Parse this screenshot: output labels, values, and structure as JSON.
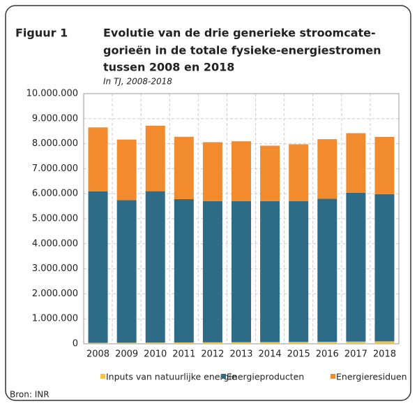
{
  "chart_data": {
    "type": "stacked_bar",
    "figure_label": "Figuur 1",
    "title": [
      "Evolutie van de drie generieke stroomcate-",
      "gorieën in de totale fysieke-energiestromen",
      "tussen 2008 en 2018"
    ],
    "subtitle": "In TJ, 2008-2018",
    "source": "Bron: INR",
    "categories": [
      "2008",
      "2009",
      "2010",
      "2011",
      "2012",
      "2013",
      "2014",
      "2015",
      "2016",
      "2017",
      "2018"
    ],
    "series": [
      {
        "name": "Inputs van natuurlijke energie",
        "color": "#f5c242",
        "values": [
          40000,
          45000,
          50000,
          55000,
          60000,
          65000,
          70000,
          75000,
          80000,
          90000,
          100000
        ]
      },
      {
        "name": "Energieproducten",
        "color": "#2e6b87",
        "values": [
          6050000,
          5700000,
          6050000,
          5730000,
          5640000,
          5640000,
          5630000,
          5630000,
          5720000,
          5950000,
          5880000
        ]
      },
      {
        "name": "Energieresiduen",
        "color": "#f28a2e",
        "values": [
          2560000,
          2420000,
          2620000,
          2490000,
          2360000,
          2390000,
          2220000,
          2270000,
          2380000,
          2380000,
          2290000
        ]
      }
    ],
    "ylim": [
      0,
      10000000
    ],
    "yticks": [
      0,
      {
        "value": 1000000,
        "label": "1.000.000"
      },
      {
        "value": 2000000,
        "label": "2.000.000"
      },
      {
        "value": 3000000,
        "label": "3.000.000"
      },
      {
        "value": 4000000,
        "label": "4.000.000"
      },
      {
        "value": 5000000,
        "label": "5.000.000"
      },
      {
        "value": 6000000,
        "label": "6.000.000"
      },
      {
        "value": 7000000,
        "label": "7.000.000"
      },
      {
        "value": 8000000,
        "label": "8.000.000"
      },
      {
        "value": 9000000,
        "label": "9.000.000"
      },
      {
        "value": 10000000,
        "label": "10.000.000"
      }
    ],
    "grid": true,
    "legend": "bottom"
  }
}
